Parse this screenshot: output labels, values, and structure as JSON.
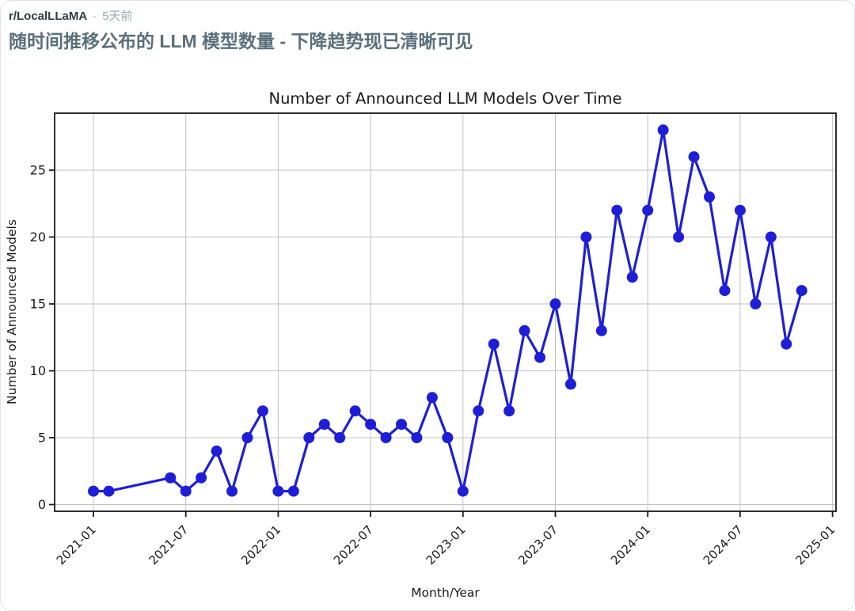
{
  "post": {
    "subreddit": "r/LocalLLaMA",
    "separator": "·",
    "time_ago": "5天前",
    "title": "随时间推移公布的 LLM 模型数量 - 下降趋势现已清晰可见"
  },
  "colors": {
    "card_border": "#e3e3e3",
    "subreddit_text": "#2f3b40",
    "meta_text": "#97a8ad",
    "title_text": "#5a707b",
    "chart_text": "#1a1a1a",
    "grid": "#c0c0c0",
    "spine": "#1a1a1a",
    "line": "#1e1ed8",
    "plot_background": "#ffffff"
  },
  "chart_data": {
    "type": "line",
    "title": "Number of Announced LLM Models Over Time",
    "xlabel": "Month/Year",
    "ylabel": "Number of Announced Models",
    "legend_position": "none",
    "grid": true,
    "marker": "circle",
    "line_color": "#1e1ed8",
    "x": [
      "2021-01",
      "2021-02",
      "2021-06",
      "2021-07",
      "2021-08",
      "2021-09",
      "2021-10",
      "2021-11",
      "2021-12",
      "2022-01",
      "2022-02",
      "2022-03",
      "2022-04",
      "2022-05",
      "2022-06",
      "2022-07",
      "2022-08",
      "2022-09",
      "2022-10",
      "2022-11",
      "2022-12",
      "2023-01",
      "2023-02",
      "2023-03",
      "2023-04",
      "2023-05",
      "2023-06",
      "2023-07",
      "2023-08",
      "2023-09",
      "2023-10",
      "2023-11",
      "2023-12",
      "2024-01",
      "2024-02",
      "2024-03",
      "2024-04",
      "2024-05",
      "2024-06",
      "2024-07",
      "2024-08",
      "2024-09",
      "2024-10",
      "2024-11"
    ],
    "values": [
      1,
      1,
      2,
      1,
      2,
      4,
      1,
      5,
      7,
      1,
      1,
      5,
      6,
      5,
      7,
      6,
      5,
      6,
      5,
      8,
      5,
      1,
      7,
      12,
      7,
      13,
      11,
      15,
      9,
      20,
      13,
      22,
      17,
      22,
      28,
      20,
      26,
      23,
      16,
      22,
      15,
      20,
      12,
      16
    ],
    "xticks": [
      "2021-01",
      "2021-07",
      "2022-01",
      "2022-07",
      "2023-01",
      "2023-07",
      "2024-01",
      "2024-07",
      "2025-01"
    ],
    "yticks": [
      0,
      5,
      10,
      15,
      20,
      25
    ],
    "ylim": [
      -0.5,
      29.3
    ],
    "xlim": [
      "2020-10",
      "2025-01"
    ]
  }
}
